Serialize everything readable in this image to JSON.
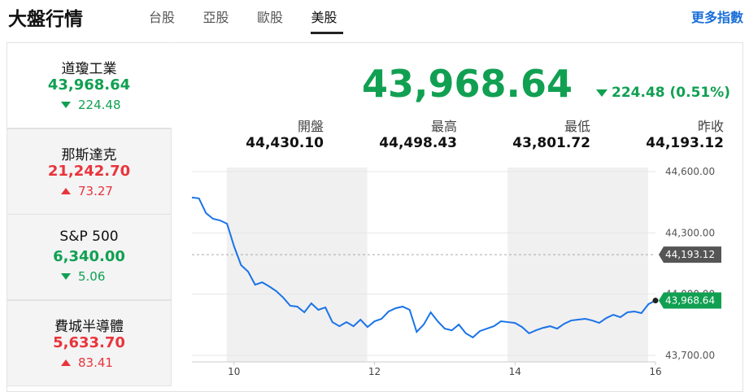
{
  "header": {
    "title": "大盤行情",
    "tabs": [
      "台股",
      "亞股",
      "歐股",
      "美股"
    ],
    "active_tab": 3,
    "more": "更多指數"
  },
  "indices": [
    {
      "name": "道瓊工業",
      "price": "43,968.64",
      "change": "224.48",
      "direction": "down"
    },
    {
      "name": "那斯達克",
      "price": "21,242.70",
      "change": "73.27",
      "direction": "up"
    },
    {
      "name": "S&P 500",
      "price": "6,340.00",
      "change": "5.06",
      "direction": "down"
    },
    {
      "name": "費城半導體",
      "price": "5,633.70",
      "change": "83.41",
      "direction": "up"
    }
  ],
  "selected_index": 0,
  "quote": {
    "price": "43,968.64",
    "change": "224.48 (0.51%)",
    "direction": "down",
    "stats": [
      {
        "label": "開盤",
        "value": "44,430.10"
      },
      {
        "label": "最高",
        "value": "44,498.43"
      },
      {
        "label": "最低",
        "value": "43,801.72"
      },
      {
        "label": "昨收",
        "value": "44,193.12"
      }
    ]
  },
  "chart_data": {
    "type": "line",
    "color": "#1a73e8",
    "x": [
      9.4,
      9.5,
      9.6,
      9.7,
      9.8,
      9.9,
      10.0,
      10.1,
      10.2,
      10.3,
      10.4,
      10.5,
      10.6,
      10.7,
      10.8,
      10.9,
      11.0,
      11.1,
      11.2,
      11.3,
      11.4,
      11.5,
      11.6,
      11.7,
      11.8,
      11.9,
      12.0,
      12.1,
      12.2,
      12.3,
      12.4,
      12.5,
      12.6,
      12.7,
      12.8,
      12.9,
      13.0,
      13.1,
      13.2,
      13.3,
      13.4,
      13.5,
      13.6,
      13.7,
      13.8,
      13.9,
      14.0,
      14.1,
      14.2,
      14.3,
      14.4,
      14.5,
      14.6,
      14.7,
      14.8,
      14.9,
      15.0,
      15.1,
      15.2,
      15.3,
      15.4,
      15.5,
      15.6,
      15.7,
      15.8,
      15.9,
      16.0
    ],
    "values": [
      44473,
      44469,
      44397,
      44369,
      44361,
      44345,
      44234,
      44142,
      44110,
      44046,
      44058,
      44038,
      44015,
      43983,
      43943,
      43939,
      43911,
      43955,
      43923,
      43935,
      43863,
      43843,
      43863,
      43843,
      43875,
      43839,
      43867,
      43879,
      43915,
      43931,
      43939,
      43923,
      43815,
      43851,
      43911,
      43867,
      43831,
      43823,
      43851,
      43808,
      43788,
      43819,
      43831,
      43843,
      43867,
      43863,
      43859,
      43839,
      43808,
      43823,
      43835,
      43843,
      43831,
      43855,
      43871,
      43875,
      43879,
      43871,
      43859,
      43883,
      43899,
      43887,
      43911,
      43915,
      43907,
      43951,
      43968.64
    ],
    "reference_line": 44193.12,
    "xlim": [
      9.4,
      16
    ],
    "ylim": [
      43700,
      44600
    ],
    "xticks": [
      10,
      12,
      14,
      16
    ],
    "yticks": [
      {
        "value": 43700,
        "label": "43,700.00"
      },
      {
        "value": 44000,
        "label": "44,000.00"
      },
      {
        "value": 44300,
        "label": "44,300.00"
      },
      {
        "value": 44600,
        "label": "44,600.00"
      }
    ]
  }
}
